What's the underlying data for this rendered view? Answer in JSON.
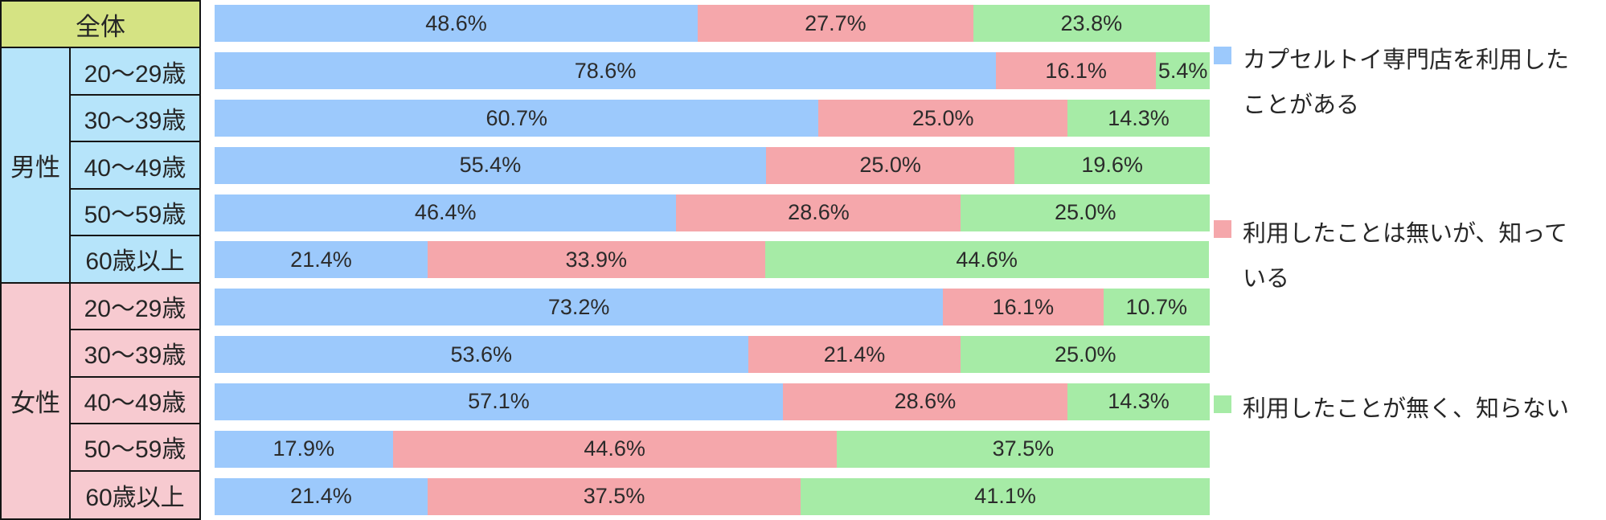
{
  "table": {
    "overall_label": "全体",
    "male_label": "男性",
    "female_label": "女性",
    "age_labels": [
      "20〜29歳",
      "30〜39歳",
      "40〜49歳",
      "50〜59歳",
      "60歳以上"
    ]
  },
  "legend": {
    "items": [
      {
        "name": "legend-used",
        "color": "#9cc9fc",
        "lines": [
          "カプセルトイ専門店を利用した",
          "ことがある"
        ]
      },
      {
        "name": "legend-known-not-used",
        "color": "#f5a7ab",
        "lines": [
          "利用したことは無いが、知って",
          "いる"
        ]
      },
      {
        "name": "legend-unknown",
        "color": "#a6eba6",
        "lines": [
          "利用したことが無く、知らない"
        ]
      }
    ]
  },
  "chart_data": {
    "type": "bar",
    "orientation": "horizontal",
    "stacked": true,
    "value_unit": "%",
    "xlim": [
      0,
      100
    ],
    "grid": false,
    "data_labels": true,
    "legend_position": "right",
    "categories": [
      "全体",
      "男性 20〜29歳",
      "男性 30〜39歳",
      "男性 40〜49歳",
      "男性 50〜59歳",
      "男性 60歳以上",
      "女性 20〜29歳",
      "女性 30〜39歳",
      "女性 40〜49歳",
      "女性 50〜59歳",
      "女性 60歳以上"
    ],
    "series": [
      {
        "name": "カプセルトイ専門店を利用したことがある",
        "color": "#9cc9fc",
        "values": [
          48.6,
          78.6,
          60.7,
          55.4,
          46.4,
          21.4,
          73.2,
          53.6,
          57.1,
          17.9,
          21.4
        ]
      },
      {
        "name": "利用したことは無いが、知っている",
        "color": "#f5a7ab",
        "values": [
          27.7,
          16.1,
          25.0,
          25.0,
          28.6,
          33.9,
          16.1,
          21.4,
          28.6,
          44.6,
          37.5
        ]
      },
      {
        "name": "利用したことが無く、知らない",
        "color": "#a6eba6",
        "values": [
          23.8,
          5.4,
          14.3,
          19.6,
          25.0,
          44.6,
          10.7,
          25.0,
          14.3,
          37.5,
          41.1
        ]
      }
    ]
  },
  "colors": {
    "table_overall_bg": "#d5e383",
    "table_male_bg": "#b6e4fa",
    "table_female_bg": "#f7cad0",
    "table_border": "#141414",
    "bar_blue": "#9cc9fc",
    "bar_pink": "#f5a7ab",
    "bar_green": "#a6eba6"
  }
}
